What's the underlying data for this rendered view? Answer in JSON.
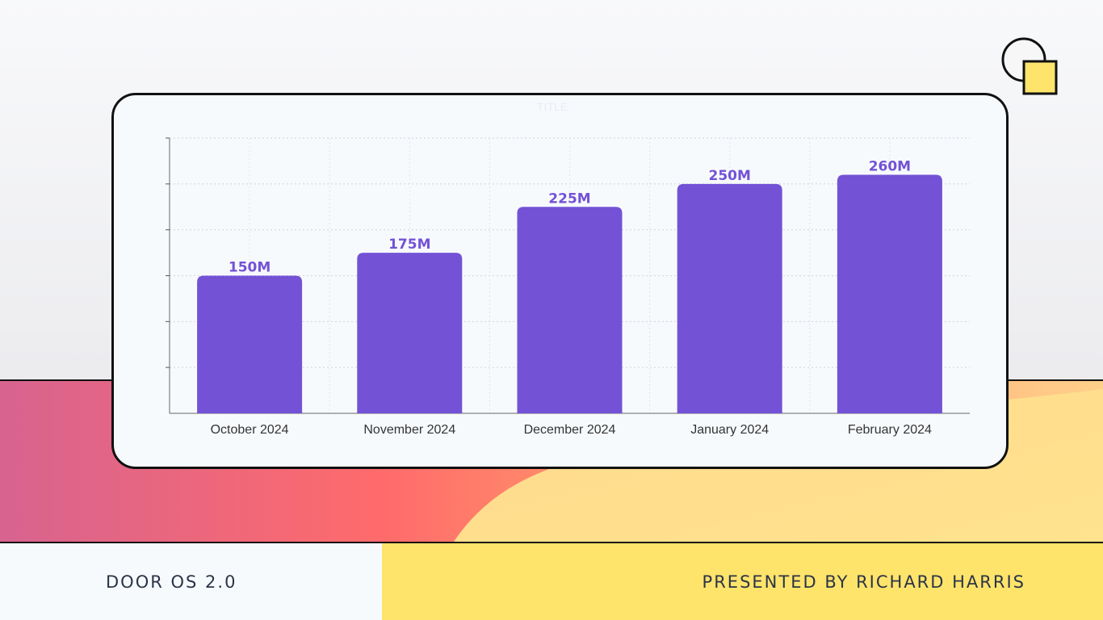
{
  "footer": {
    "left_label": "DOOR OS 2.0",
    "right_label": "PRESENTED BY RICHARD HARRIS"
  },
  "colors": {
    "bar": "#7352d6",
    "card_background": "#f7fafd",
    "footer_yellow": "#ffe46b"
  },
  "chart_data": {
    "type": "bar",
    "title": "TITLE",
    "categories": [
      "October 2024",
      "November 2024",
      "December 2024",
      "January 2024",
      "February 2024"
    ],
    "values": [
      150,
      175,
      225,
      250,
      260
    ],
    "data_labels": [
      "150M",
      "175M",
      "225M",
      "250M",
      "260M"
    ],
    "xlabel": "",
    "ylabel": "",
    "ylim": [
      0,
      300
    ],
    "y_gridline_step": 50,
    "grid": true
  }
}
